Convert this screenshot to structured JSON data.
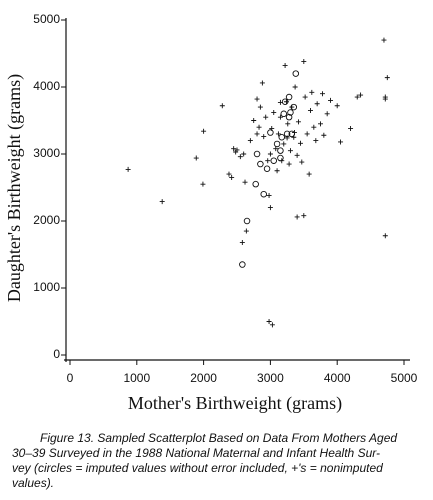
{
  "chart_data": {
    "type": "scatter",
    "x_label": "Mother's Birthweight (grams)",
    "y_label": "Daughter's Birthweight (grams)",
    "xlim": [
      0,
      5000
    ],
    "xticks": [
      0,
      1000,
      2000,
      3000,
      4000,
      5000
    ],
    "ylim": [
      0,
      5000
    ],
    "yticks": [
      0,
      1000,
      2000,
      3000,
      4000,
      5000
    ],
    "series": [
      {
        "marker": "plus",
        "color": "#111111",
        "x": [
          870,
          1380,
          1890,
          2000,
          1990,
          2280,
          2380,
          2450,
          2500,
          2550,
          2600,
          2620,
          2580,
          2640,
          2700,
          2750,
          2800,
          2830,
          2850,
          2880,
          2900,
          2930,
          2960,
          2980,
          3000,
          3020,
          3050,
          3080,
          3100,
          3120,
          3150,
          3170,
          3200,
          3220,
          3240,
          3260,
          3280,
          3300,
          3320,
          3350,
          3370,
          3400,
          3420,
          3450,
          3470,
          3500,
          3520,
          3550,
          3580,
          3600,
          3620,
          3650,
          3680,
          3700,
          3750,
          3780,
          3800,
          3850,
          4000,
          4050,
          4200,
          4300,
          4350,
          4700,
          4720,
          4750,
          4720,
          4720,
          3500,
          3400,
          2980,
          3030,
          2480,
          2420,
          3150,
          3250,
          3360,
          3000,
          2800,
          3900
        ],
        "values": [
          2770,
          2290,
          2940,
          3340,
          2550,
          3720,
          2700,
          3080,
          3060,
          2960,
          3000,
          2580,
          1680,
          1850,
          3200,
          3500,
          3820,
          3400,
          3700,
          4060,
          3260,
          3550,
          2900,
          2380,
          2200,
          3380,
          3620,
          3080,
          2750,
          3300,
          3550,
          2900,
          3150,
          4320,
          3780,
          3450,
          2850,
          3050,
          3700,
          3250,
          4000,
          2980,
          3480,
          3160,
          2880,
          4380,
          3850,
          3300,
          2700,
          3650,
          3920,
          3400,
          3200,
          3750,
          3450,
          3900,
          3280,
          3600,
          3720,
          3180,
          3380,
          3850,
          3880,
          4700,
          3850,
          4140,
          3820,
          1780,
          2080,
          2060,
          500,
          450,
          3030,
          2650,
          3770,
          3240,
          3320,
          3000,
          3300,
          3800
        ]
      },
      {
        "marker": "circle",
        "color": "#111111",
        "x": [
          2580,
          2650,
          2780,
          2800,
          2850,
          2900,
          2950,
          3000,
          3050,
          3100,
          3150,
          3170,
          3200,
          3220,
          3250,
          3280,
          3300,
          3320,
          3350,
          3380,
          3280,
          3150
        ],
        "values": [
          1350,
          2000,
          2550,
          3000,
          2850,
          2400,
          2780,
          3320,
          2900,
          3150,
          3050,
          3250,
          3600,
          3780,
          3300,
          3550,
          3620,
          3300,
          3700,
          4200,
          3850,
          2940
        ]
      }
    ]
  },
  "caption_lines": [
    "Figure 13.   Sampled Scatterplot Based on Data From Mothers Aged",
    "30–39 Surveyed in the 1988 National Maternal and Infant Health Sur-",
    "vey (circles = imputed values without error included, +'s = nonimputed",
    "values)."
  ]
}
